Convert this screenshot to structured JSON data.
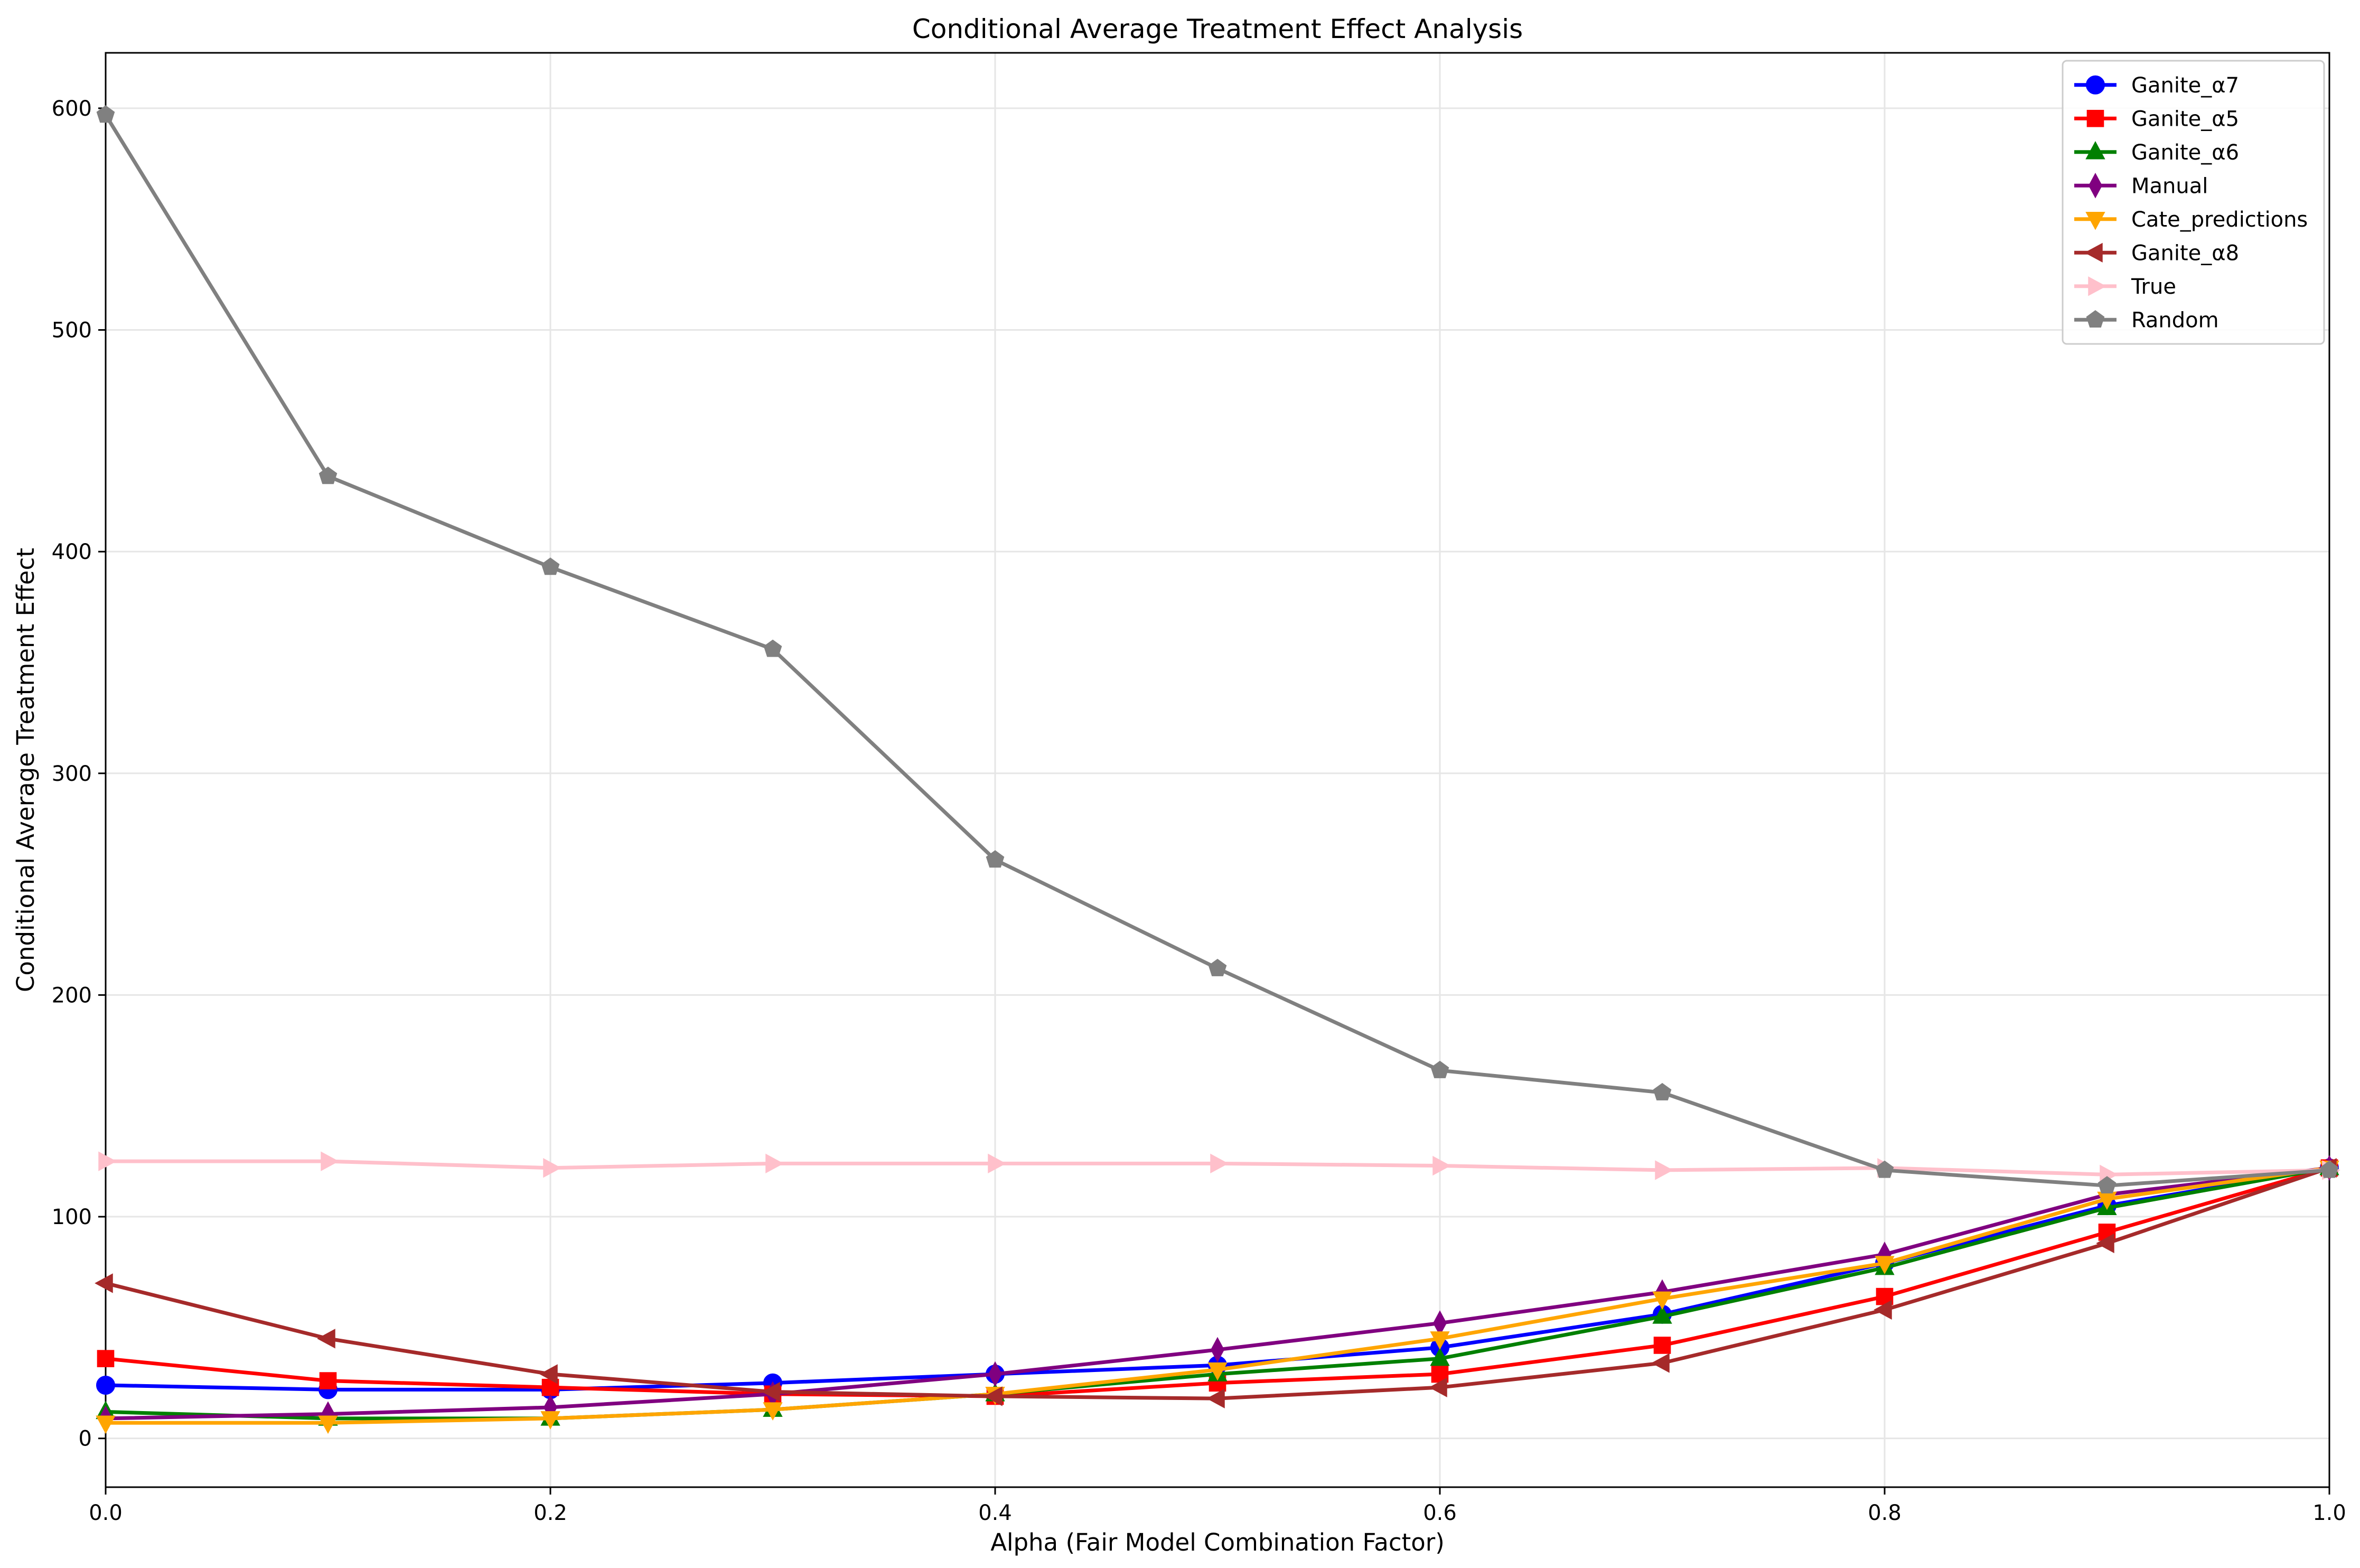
{
  "chart_data": {
    "type": "line",
    "title": "Conditional Average Treatment Effect Analysis",
    "xlabel": "Alpha (Fair Model Combination Factor)",
    "ylabel": "Conditional Average Treatment Effect",
    "xlim": [
      0,
      1.0
    ],
    "ylim": [
      -22,
      625
    ],
    "xticks": [
      0.0,
      0.2,
      0.4,
      0.6,
      0.8,
      1.0
    ],
    "xtick_labels": [
      "0.0",
      "0.2",
      "0.4",
      "0.6",
      "0.8",
      "1.0"
    ],
    "yticks": [
      0,
      100,
      200,
      300,
      400,
      500,
      600
    ],
    "ytick_labels": [
      "0",
      "100",
      "200",
      "300",
      "400",
      "500",
      "600"
    ],
    "grid": true,
    "legend_position": "top-right",
    "x": [
      0.0,
      0.1,
      0.2,
      0.3,
      0.4,
      0.5,
      0.6,
      0.7,
      0.8,
      0.9,
      1.0
    ],
    "series": [
      {
        "name": "Ganite_α7",
        "color": "#0000ff",
        "marker": "circle",
        "values": [
          24,
          22,
          22,
          25,
          29,
          33,
          41,
          56,
          79,
          105,
          122
        ]
      },
      {
        "name": "Ganite_α5",
        "color": "#ff0000",
        "marker": "square",
        "values": [
          36,
          26,
          23,
          20,
          19,
          25,
          29,
          42,
          64,
          93,
          122
        ]
      },
      {
        "name": "Ganite_α6",
        "color": "#008000",
        "marker": "triangle-up",
        "values": [
          12,
          9,
          9,
          13,
          20,
          29,
          36,
          55,
          77,
          104,
          122
        ]
      },
      {
        "name": "Manual",
        "color": "#800080",
        "marker": "diamond",
        "values": [
          9,
          11,
          14,
          20,
          29,
          40,
          52,
          66,
          83,
          110,
          122
        ]
      },
      {
        "name": "Cate_predictions",
        "color": "#ffa500",
        "marker": "triangle-down",
        "values": [
          7,
          7,
          9,
          13,
          20,
          31,
          45,
          63,
          79,
          108,
          122
        ]
      },
      {
        "name": "Ganite_α8",
        "color": "#a52a2a",
        "marker": "triangle-left",
        "values": [
          70,
          45,
          29,
          21,
          19,
          18,
          23,
          34,
          58,
          88,
          122
        ]
      },
      {
        "name": "True",
        "color": "#ffc0cb",
        "marker": "triangle-right",
        "values": [
          125,
          125,
          122,
          124,
          124,
          124,
          123,
          121,
          122,
          119,
          121
        ]
      },
      {
        "name": "Random",
        "color": "#808080",
        "marker": "pentagon",
        "values": [
          597,
          434,
          393,
          356,
          261,
          212,
          166,
          156,
          121,
          114,
          121
        ]
      }
    ]
  }
}
